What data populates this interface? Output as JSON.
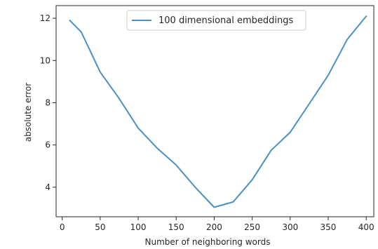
{
  "colors": {
    "series": "#4a90c4",
    "axis": "#262626",
    "legend_border": "#cccccc",
    "background": "#ffffff"
  },
  "chart_data": {
    "type": "line",
    "xlabel": "Number of neighboring words",
    "ylabel": "absolute error",
    "xlim": [
      -8,
      410
    ],
    "ylim": [
      2.6,
      12.6
    ],
    "xticks": [
      0,
      50,
      100,
      150,
      200,
      250,
      300,
      350,
      400
    ],
    "yticks": [
      4,
      6,
      8,
      10,
      12
    ],
    "grid": false,
    "legend_placement": "top-center",
    "series": [
      {
        "name": "100 dimensional embeddings",
        "x": [
          10,
          25,
          50,
          75,
          100,
          125,
          150,
          175,
          200,
          225,
          250,
          275,
          300,
          325,
          350,
          375,
          400
        ],
        "y": [
          11.9,
          11.35,
          9.45,
          8.2,
          6.8,
          5.85,
          5.05,
          4.0,
          3.05,
          3.3,
          4.35,
          5.75,
          6.6,
          7.95,
          9.3,
          11.0,
          12.1
        ]
      }
    ]
  }
}
